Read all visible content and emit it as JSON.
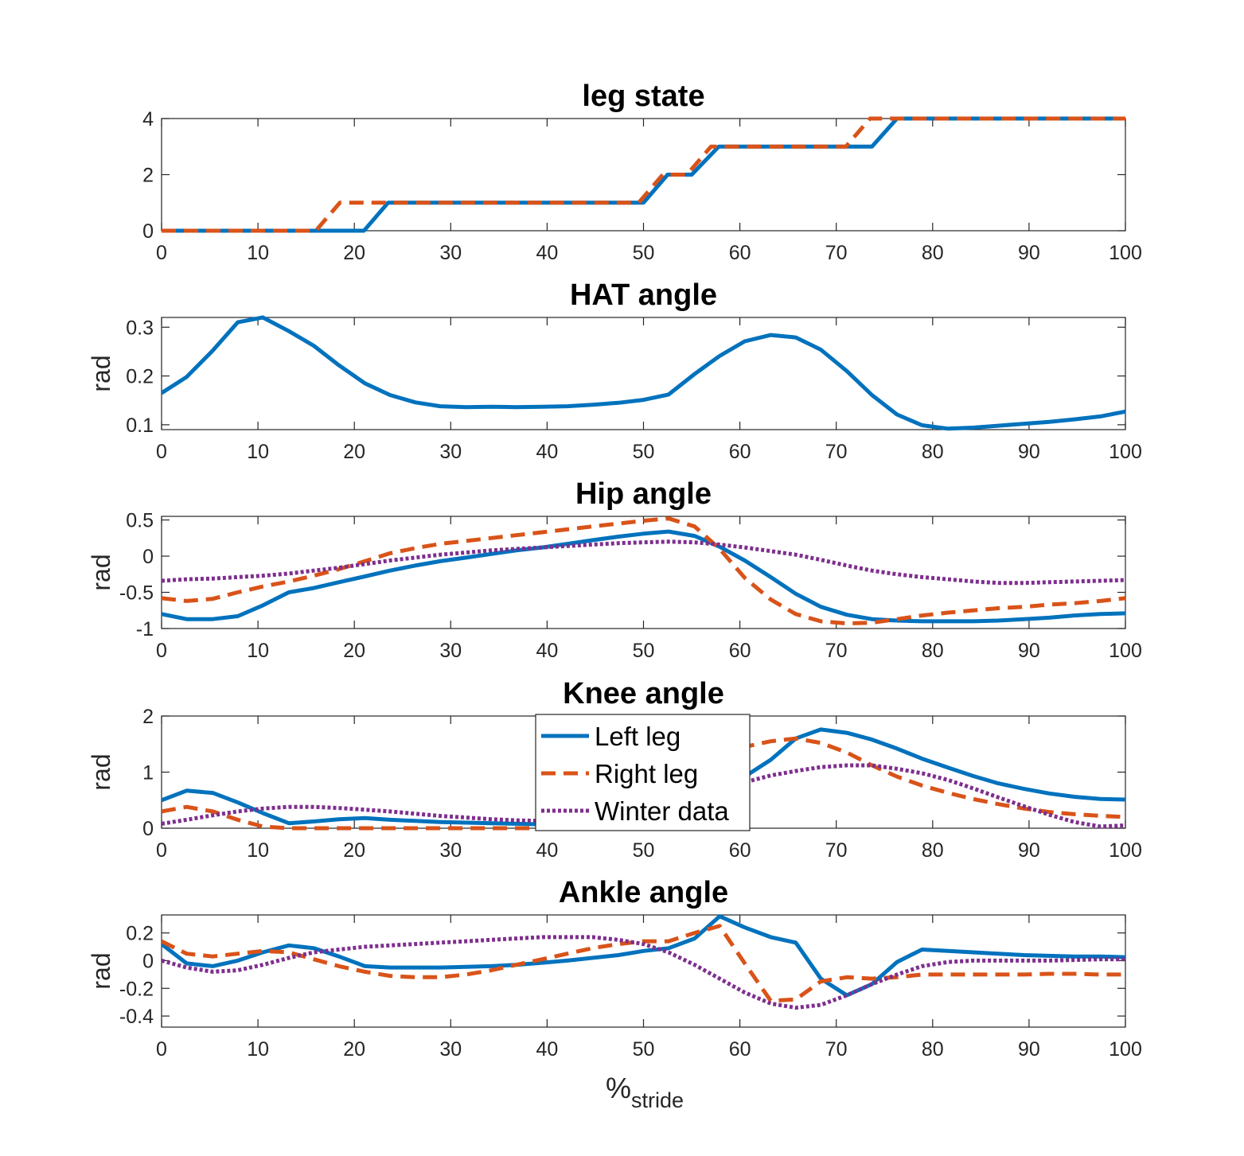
{
  "xlabel": "%",
  "xlabel_sub": "stride",
  "legend": [
    "Left leg",
    "Right leg",
    "Winter data"
  ],
  "colors": {
    "left": "#0072BD",
    "right": "#D95319",
    "winter": "#7E2F8E"
  },
  "chart_data": [
    {
      "type": "line",
      "title": "leg state",
      "ylabel": "",
      "xlim": [
        0,
        100
      ],
      "ylim": [
        0,
        4
      ],
      "xticks": [
        0,
        10,
        20,
        30,
        40,
        50,
        60,
        70,
        80,
        90,
        100
      ],
      "yticks": [
        0,
        2,
        4
      ],
      "yticklabels": [
        "0",
        "2",
        "4"
      ],
      "series": [
        {
          "key": "left",
          "style": "solid",
          "x": [
            0,
            21,
            23.5,
            50,
            52.5,
            55,
            57.8,
            73.7,
            76.3,
            100
          ],
          "y": [
            0,
            0,
            1,
            1,
            2,
            2,
            3,
            3,
            4,
            4
          ]
        },
        {
          "key": "right",
          "style": "dashed",
          "x": [
            0,
            16,
            18.5,
            49.5,
            52,
            54.5,
            57,
            71,
            73.5,
            100
          ],
          "y": [
            0,
            0,
            1,
            1,
            2,
            2,
            3,
            3,
            4,
            4
          ]
        }
      ]
    },
    {
      "type": "line",
      "title": "HAT angle",
      "ylabel": "rad",
      "xlim": [
        0,
        100
      ],
      "ylim": [
        0.09,
        0.32
      ],
      "xticks": [
        0,
        10,
        20,
        30,
        40,
        50,
        60,
        70,
        80,
        90,
        100
      ],
      "yticks": [
        0.1,
        0.2,
        0.3
      ],
      "yticklabels": [
        "0.1",
        "0.2",
        "0.3"
      ],
      "series": [
        {
          "key": "left",
          "style": "solid",
          "x": [
            0,
            2.6,
            5.3,
            7.9,
            10.5,
            13.2,
            15.8,
            18.4,
            21.1,
            23.7,
            26.3,
            28.9,
            31.6,
            34.2,
            36.8,
            39.5,
            42.1,
            44.7,
            47.4,
            50,
            52.6,
            55.3,
            57.9,
            60.5,
            63.2,
            65.8,
            68.4,
            71.1,
            73.7,
            76.3,
            78.9,
            81.6,
            84.2,
            86.8,
            89.5,
            92.1,
            94.7,
            97.4,
            100
          ],
          "y": [
            0.165,
            0.198,
            0.252,
            0.31,
            0.32,
            0.292,
            0.262,
            0.222,
            0.185,
            0.161,
            0.146,
            0.138,
            0.136,
            0.137,
            0.136,
            0.137,
            0.138,
            0.141,
            0.145,
            0.151,
            0.162,
            0.204,
            0.241,
            0.271,
            0.284,
            0.279,
            0.254,
            0.21,
            0.161,
            0.121,
            0.099,
            0.092,
            0.094,
            0.098,
            0.102,
            0.106,
            0.111,
            0.117,
            0.127
          ]
        }
      ]
    },
    {
      "type": "line",
      "title": "Hip angle",
      "ylabel": "rad",
      "xlim": [
        0,
        100
      ],
      "ylim": [
        -1,
        0.55
      ],
      "xticks": [
        0,
        10,
        20,
        30,
        40,
        50,
        60,
        70,
        80,
        90,
        100
      ],
      "yticks": [
        -1,
        -0.5,
        0,
        0.5
      ],
      "yticklabels": [
        "-1",
        "-0.5",
        "0",
        "0.5"
      ],
      "series": [
        {
          "key": "left",
          "style": "solid",
          "x": [
            0,
            2.6,
            5.3,
            7.9,
            10.5,
            13.2,
            15.8,
            18.4,
            21.1,
            23.7,
            26.3,
            28.9,
            31.6,
            34.2,
            36.8,
            39.5,
            42.1,
            44.7,
            47.4,
            50,
            52.6,
            55.3,
            57.9,
            60.5,
            63.2,
            65.8,
            68.4,
            71.1,
            73.7,
            76.3,
            78.9,
            81.6,
            84.2,
            86.8,
            89.5,
            92.1,
            94.7,
            97.4,
            100
          ],
          "y": [
            -0.8,
            -0.87,
            -0.87,
            -0.83,
            -0.68,
            -0.5,
            -0.44,
            -0.36,
            -0.28,
            -0.2,
            -0.13,
            -0.07,
            -0.02,
            0.03,
            0.08,
            0.12,
            0.17,
            0.22,
            0.27,
            0.31,
            0.34,
            0.28,
            0.13,
            -0.06,
            -0.29,
            -0.52,
            -0.7,
            -0.81,
            -0.87,
            -0.89,
            -0.9,
            -0.9,
            -0.9,
            -0.89,
            -0.87,
            -0.85,
            -0.82,
            -0.8,
            -0.79
          ]
        },
        {
          "key": "right",
          "style": "dashed",
          "x": [
            0,
            2.6,
            5.3,
            7.9,
            10.5,
            13.2,
            15.8,
            18.4,
            21.1,
            23.7,
            26.3,
            28.9,
            31.6,
            34.2,
            36.8,
            39.5,
            42.1,
            44.7,
            47.4,
            50,
            52.6,
            55.3,
            57.9,
            60.5,
            63.2,
            65.8,
            68.4,
            71.1,
            73.7,
            76.3,
            78.9,
            81.6,
            84.2,
            86.8,
            89.5,
            92.1,
            94.7,
            97.4,
            100
          ],
          "y": [
            -0.58,
            -0.62,
            -0.59,
            -0.5,
            -0.42,
            -0.35,
            -0.27,
            -0.18,
            -0.07,
            0.04,
            0.11,
            0.17,
            0.21,
            0.25,
            0.29,
            0.33,
            0.37,
            0.41,
            0.45,
            0.49,
            0.52,
            0.41,
            0.1,
            -0.3,
            -0.6,
            -0.8,
            -0.9,
            -0.93,
            -0.92,
            -0.87,
            -0.82,
            -0.78,
            -0.75,
            -0.72,
            -0.7,
            -0.67,
            -0.65,
            -0.62,
            -0.58
          ]
        },
        {
          "key": "winter",
          "style": "dotted",
          "x": [
            0,
            2.6,
            5.3,
            7.9,
            10.5,
            13.2,
            15.8,
            18.4,
            21.1,
            23.7,
            26.3,
            28.9,
            31.6,
            34.2,
            36.8,
            39.5,
            42.1,
            44.7,
            47.4,
            50,
            52.6,
            55.3,
            57.9,
            60.5,
            63.2,
            65.8,
            68.4,
            71.1,
            73.7,
            76.3,
            78.9,
            81.6,
            84.2,
            86.8,
            89.5,
            92.1,
            94.7,
            97.4,
            100
          ],
          "y": [
            -0.34,
            -0.32,
            -0.31,
            -0.29,
            -0.27,
            -0.24,
            -0.2,
            -0.16,
            -0.11,
            -0.06,
            -0.02,
            0.02,
            0.05,
            0.08,
            0.1,
            0.12,
            0.14,
            0.16,
            0.18,
            0.19,
            0.2,
            0.19,
            0.16,
            0.12,
            0.07,
            0.02,
            -0.05,
            -0.13,
            -0.2,
            -0.25,
            -0.29,
            -0.32,
            -0.35,
            -0.37,
            -0.37,
            -0.36,
            -0.35,
            -0.34,
            -0.33
          ]
        }
      ]
    },
    {
      "type": "line",
      "title": "Knee angle",
      "ylabel": "rad",
      "xlim": [
        0,
        100
      ],
      "ylim": [
        0,
        2
      ],
      "xticks": [
        0,
        10,
        20,
        30,
        40,
        50,
        60,
        70,
        80,
        90,
        100
      ],
      "yticks": [
        0,
        1,
        2
      ],
      "yticklabels": [
        "0",
        "1",
        "2"
      ],
      "series": [
        {
          "key": "left",
          "style": "solid",
          "x": [
            0,
            2.6,
            5.3,
            7.9,
            10.5,
            13.2,
            15.8,
            18.4,
            21.1,
            23.7,
            26.3,
            28.9,
            31.6,
            34.2,
            36.8,
            39.5,
            42.1,
            44.7,
            47.4,
            50,
            52.6,
            55.3,
            57.9,
            60.5,
            63.2,
            65.8,
            68.4,
            71.1,
            73.7,
            76.3,
            78.9,
            81.6,
            84.2,
            86.8,
            89.5,
            92.1,
            94.7,
            97.4,
            100
          ],
          "y": [
            0.5,
            0.67,
            0.63,
            0.46,
            0.27,
            0.09,
            0.12,
            0.16,
            0.18,
            0.15,
            0.13,
            0.11,
            0.1,
            0.09,
            0.08,
            0.07,
            0.08,
            0.12,
            0.22,
            0.38,
            0.55,
            0.68,
            0.78,
            0.92,
            1.22,
            1.6,
            1.76,
            1.7,
            1.58,
            1.42,
            1.24,
            1.08,
            0.93,
            0.8,
            0.7,
            0.62,
            0.56,
            0.52,
            0.51
          ]
        },
        {
          "key": "right",
          "style": "dashed",
          "x": [
            0,
            2.6,
            5.3,
            7.9,
            10.5,
            13.2,
            15.8,
            18.4,
            21.1,
            23.7,
            26.3,
            28.9,
            31.6,
            34.2,
            36.8,
            39.5,
            42.1,
            44.7,
            47.4,
            50,
            52.6,
            55.3,
            57.9,
            60.5,
            63.2,
            65.8,
            68.4,
            71.1,
            73.7,
            76.3,
            78.9,
            81.6,
            84.2,
            86.8,
            89.5,
            92.1,
            94.7,
            97.4,
            100
          ],
          "y": [
            0.3,
            0.38,
            0.3,
            0.15,
            0.03,
            0.0,
            0.0,
            0.0,
            0.0,
            0.0,
            0.0,
            0.0,
            0.0,
            0.0,
            0.0,
            0.0,
            0.0,
            0.06,
            0.2,
            0.45,
            0.75,
            1.05,
            1.3,
            1.45,
            1.55,
            1.6,
            1.52,
            1.35,
            1.12,
            0.92,
            0.76,
            0.63,
            0.52,
            0.43,
            0.35,
            0.29,
            0.25,
            0.22,
            0.2
          ]
        },
        {
          "key": "winter",
          "style": "dotted",
          "x": [
            0,
            2.6,
            5.3,
            7.9,
            10.5,
            13.2,
            15.8,
            18.4,
            21.1,
            23.7,
            26.3,
            28.9,
            31.6,
            34.2,
            36.8,
            39.5,
            42.1,
            44.7,
            47.4,
            50,
            52.6,
            55.3,
            57.9,
            60.5,
            63.2,
            65.8,
            68.4,
            71.1,
            73.7,
            76.3,
            78.9,
            81.6,
            84.2,
            86.8,
            89.5,
            92.1,
            94.7,
            97.4,
            100
          ],
          "y": [
            0.08,
            0.15,
            0.23,
            0.3,
            0.35,
            0.38,
            0.38,
            0.36,
            0.33,
            0.3,
            0.26,
            0.22,
            0.19,
            0.16,
            0.14,
            0.13,
            0.14,
            0.17,
            0.24,
            0.35,
            0.48,
            0.6,
            0.7,
            0.82,
            0.94,
            1.02,
            1.09,
            1.12,
            1.12,
            1.06,
            0.98,
            0.86,
            0.71,
            0.55,
            0.39,
            0.24,
            0.11,
            0.03,
            0.05
          ]
        }
      ]
    },
    {
      "type": "line",
      "title": "Ankle angle",
      "ylabel": "rad",
      "xlim": [
        0,
        100
      ],
      "ylim": [
        -0.48,
        0.33
      ],
      "xticks": [
        0,
        10,
        20,
        30,
        40,
        50,
        60,
        70,
        80,
        90,
        100
      ],
      "yticks": [
        -0.4,
        -0.2,
        0,
        0.2
      ],
      "yticklabels": [
        "-0.4",
        "-0.2",
        "0",
        "0.2"
      ],
      "series": [
        {
          "key": "left",
          "style": "solid",
          "x": [
            0,
            2.6,
            5.3,
            7.9,
            10.5,
            13.2,
            15.8,
            18.4,
            21.1,
            23.7,
            26.3,
            28.9,
            31.6,
            34.2,
            36.8,
            39.5,
            42.1,
            44.7,
            47.4,
            50,
            52.6,
            55.3,
            57.9,
            60.5,
            63.2,
            65.8,
            68.4,
            71.1,
            73.7,
            76.3,
            78.9,
            81.6,
            84.2,
            86.8,
            89.5,
            92.1,
            94.7,
            97.4,
            100
          ],
          "y": [
            0.12,
            -0.02,
            -0.04,
            0.0,
            0.06,
            0.11,
            0.09,
            0.03,
            -0.04,
            -0.05,
            -0.05,
            -0.05,
            -0.045,
            -0.04,
            -0.03,
            -0.015,
            0.0,
            0.02,
            0.04,
            0.07,
            0.09,
            0.16,
            0.32,
            0.24,
            0.17,
            0.13,
            -0.13,
            -0.25,
            -0.17,
            -0.01,
            0.08,
            0.07,
            0.06,
            0.05,
            0.04,
            0.035,
            0.03,
            0.03,
            0.025
          ]
        },
        {
          "key": "right",
          "style": "dashed",
          "x": [
            0,
            2.6,
            5.3,
            7.9,
            10.5,
            13.2,
            15.8,
            18.4,
            21.1,
            23.7,
            26.3,
            28.9,
            31.6,
            34.2,
            36.8,
            39.5,
            42.1,
            44.7,
            47.4,
            50,
            52.6,
            55.3,
            57.9,
            60.5,
            63.2,
            65.8,
            68.4,
            71.1,
            73.7,
            76.3,
            78.9,
            81.6,
            84.2,
            86.8,
            89.5,
            92.1,
            94.7,
            97.4,
            100
          ],
          "y": [
            0.14,
            0.05,
            0.03,
            0.05,
            0.07,
            0.06,
            0.01,
            -0.04,
            -0.08,
            -0.11,
            -0.12,
            -0.12,
            -0.1,
            -0.07,
            -0.03,
            0.01,
            0.05,
            0.09,
            0.12,
            0.14,
            0.14,
            0.2,
            0.25,
            -0.02,
            -0.29,
            -0.28,
            -0.15,
            -0.12,
            -0.13,
            -0.12,
            -0.1,
            -0.1,
            -0.1,
            -0.1,
            -0.1,
            -0.095,
            -0.095,
            -0.1,
            -0.1
          ]
        },
        {
          "key": "winter",
          "style": "dotted",
          "x": [
            0,
            2.6,
            5.3,
            7.9,
            10.5,
            13.2,
            15.8,
            18.4,
            21.1,
            23.7,
            26.3,
            28.9,
            31.6,
            34.2,
            36.8,
            39.5,
            42.1,
            44.7,
            47.4,
            50,
            52.6,
            55.3,
            57.9,
            60.5,
            63.2,
            65.8,
            68.4,
            71.1,
            73.7,
            76.3,
            78.9,
            81.6,
            84.2,
            86.8,
            89.5,
            92.1,
            94.7,
            97.4,
            100
          ],
          "y": [
            0.0,
            -0.05,
            -0.08,
            -0.07,
            -0.03,
            0.02,
            0.06,
            0.08,
            0.1,
            0.11,
            0.12,
            0.13,
            0.14,
            0.15,
            0.16,
            0.17,
            0.17,
            0.17,
            0.15,
            0.12,
            0.06,
            -0.03,
            -0.13,
            -0.23,
            -0.31,
            -0.34,
            -0.32,
            -0.25,
            -0.17,
            -0.1,
            -0.04,
            -0.01,
            0.0,
            0.0,
            0.0,
            0.0,
            0.005,
            0.01,
            0.01
          ]
        }
      ]
    }
  ]
}
